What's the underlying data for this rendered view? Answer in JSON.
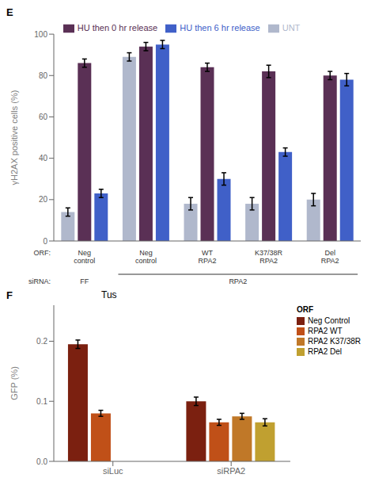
{
  "chart_data": [
    {
      "type": "bar",
      "annotations": [
        "E",
        "ORF:",
        "siRNA:",
        "FF",
        "RPA2"
      ],
      "ylabel": "γH2AX positive cells (%)",
      "categories": [
        "Neg\ncontrol",
        "Neg\ncontrol",
        "WT\nRPA2",
        "K37/38R\nRPA2",
        "Del\nRPA2"
      ],
      "series": [
        {
          "name": "UNT",
          "color": "#b0b8cc",
          "values": [
            14,
            89,
            18,
            18,
            20
          ],
          "errors": [
            2,
            2,
            3,
            3,
            3
          ]
        },
        {
          "name": "HU then 0 hr release",
          "color": "#5a3055",
          "values": [
            86,
            94,
            84,
            82,
            80
          ],
          "errors": [
            2,
            2,
            2,
            3,
            2
          ]
        },
        {
          "name": "HU then 6 hr release",
          "color": "#4060c8",
          "values": [
            23,
            95,
            30,
            43,
            78
          ],
          "errors": [
            2,
            2,
            3,
            2,
            3
          ]
        }
      ],
      "ylim": [
        0,
        100
      ],
      "yticks": [
        0,
        20,
        40,
        60,
        80,
        100
      ],
      "grid": false,
      "legend": "top"
    },
    {
      "type": "bar",
      "title": "Tus",
      "annotations": [
        "F",
        "ORF"
      ],
      "ylabel": "GFP (%)",
      "categories": [
        "siLuc",
        "siRPA2"
      ],
      "series": [
        {
          "name": "Neg Control",
          "color": "#7b2010",
          "values": [
            0.195,
            0.1
          ],
          "errors": [
            0.007,
            0.007
          ]
        },
        {
          "name": "RPA2 WT",
          "color": "#c05018",
          "values": [
            0.08,
            0.065
          ],
          "errors": [
            0.005,
            0.005
          ]
        },
        {
          "name": "RPA2 K37/38R",
          "color": "#c07828",
          "values": [
            null,
            0.075
          ],
          "errors": [
            null,
            0.005
          ]
        },
        {
          "name": "RPA2 Del",
          "color": "#c0a030",
          "values": [
            null,
            0.065
          ],
          "errors": [
            null,
            0.006
          ]
        }
      ],
      "ylim": [
        0,
        0.26
      ],
      "yticks": [
        {
          "value": 0,
          "label": "0.0"
        },
        {
          "value": 0.1,
          "label": "0.1"
        },
        {
          "value": 0.2,
          "label": "0.2"
        }
      ],
      "grid": false,
      "legend": "right"
    }
  ]
}
